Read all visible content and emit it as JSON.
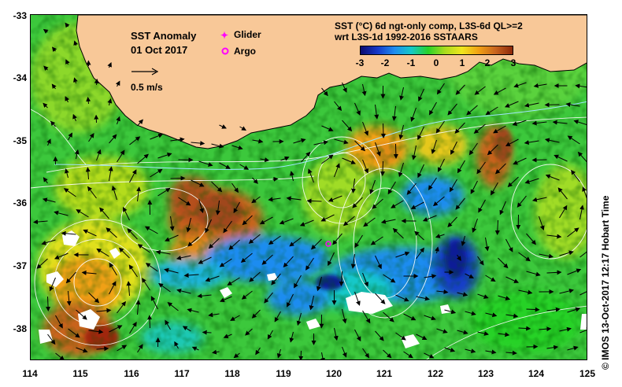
{
  "title": "SST Anomaly",
  "date": "01 Oct 2017",
  "legend": {
    "glider": "Glider",
    "argo": "Argo",
    "glider_color": "#ff00ff",
    "argo_color": "#ff00ff"
  },
  "vector_scale": "0.5 m/s",
  "product_line1": "SST (°C) 6d ngt-only comp, L3S-6d QL>=2",
  "product_line2": "wrt L3S-1d 1992-2016 SSTAARS",
  "colorbar": {
    "ticks": [
      "-3",
      "-2",
      "-1",
      "0",
      "1",
      "2",
      "3"
    ],
    "range": [
      -3,
      3
    ],
    "colors": [
      "#0a0a6e",
      "#1437c8",
      "#1e8cf0",
      "#14c8c8",
      "#28d228",
      "#aadc1e",
      "#f0e61e",
      "#f0a014",
      "#c8641e",
      "#8c280a"
    ]
  },
  "axes": {
    "lat_ticks": [
      "-33",
      "-34",
      "-35",
      "-36",
      "-37",
      "-38"
    ],
    "lon_ticks": [
      "114",
      "115",
      "116",
      "117",
      "118",
      "119",
      "120",
      "121",
      "122",
      "123",
      "124",
      "125"
    ]
  },
  "credit": "© IMOS 13-Oct-2017 12:17 Hobart Time",
  "colors": {
    "land": "#f8c898",
    "ocean_base": "#3cc83c",
    "contour": "#ffffff",
    "no_data": "#ffffff"
  }
}
